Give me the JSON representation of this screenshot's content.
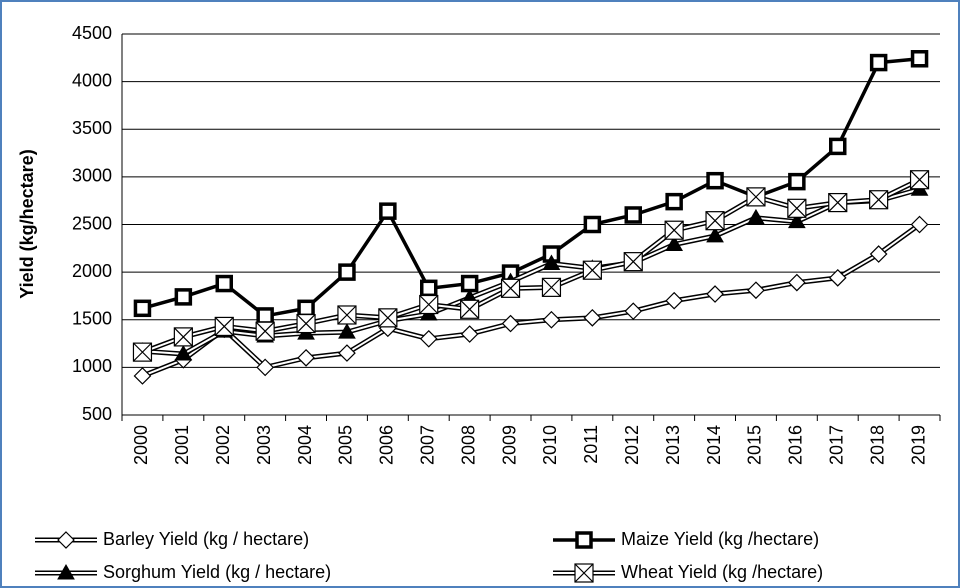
{
  "chart_data": {
    "type": "line",
    "y_label": "Yield (kg/hectare)",
    "categories": [
      "2000",
      "2001",
      "2002",
      "2003",
      "2004",
      "2005",
      "2006",
      "2007",
      "2008",
      "2009",
      "2010",
      "2011",
      "2012",
      "2013",
      "2014",
      "2015",
      "2016",
      "2017",
      "2018",
      "2019"
    ],
    "series": [
      {
        "name": "Barley Yield (kg / hectare)",
        "color": "#000000",
        "marker": "diamond",
        "values": [
          910,
          1080,
          1400,
          1000,
          1100,
          1150,
          1410,
          1300,
          1350,
          1460,
          1500,
          1520,
          1590,
          1700,
          1770,
          1810,
          1890,
          1940,
          2190,
          2500
        ]
      },
      {
        "name": "Maize Yield (kg /hectare)",
        "color": "#000000",
        "marker": "square",
        "values": [
          1620,
          1740,
          1880,
          1540,
          1620,
          2000,
          2640,
          1830,
          1880,
          1990,
          2190,
          2500,
          2600,
          2740,
          2960,
          2790,
          2950,
          3320,
          4200,
          4240
        ]
      },
      {
        "name": "Sorghum Yield (kg / hectare)",
        "color": "#000000",
        "marker": "triangle",
        "values": [
          1170,
          1140,
          1380,
          1330,
          1360,
          1370,
          1490,
          1560,
          1730,
          1900,
          2090,
          2040,
          2100,
          2290,
          2380,
          2570,
          2530,
          2730,
          2750,
          2870
        ]
      },
      {
        "name": "Wheat Yield (kg /hectare)",
        "color": "#000000",
        "marker": "xsquare",
        "values": [
          1160,
          1320,
          1430,
          1380,
          1460,
          1550,
          1520,
          1660,
          1610,
          1830,
          1840,
          2020,
          2110,
          2440,
          2540,
          2790,
          2670,
          2730,
          2760,
          2970
        ]
      }
    ],
    "ylim": [
      500,
      4500
    ],
    "yticks": [
      500,
      1000,
      1500,
      2000,
      2500,
      3000,
      3500,
      4000,
      4500
    ],
    "grid": true,
    "legend": "bottom"
  }
}
